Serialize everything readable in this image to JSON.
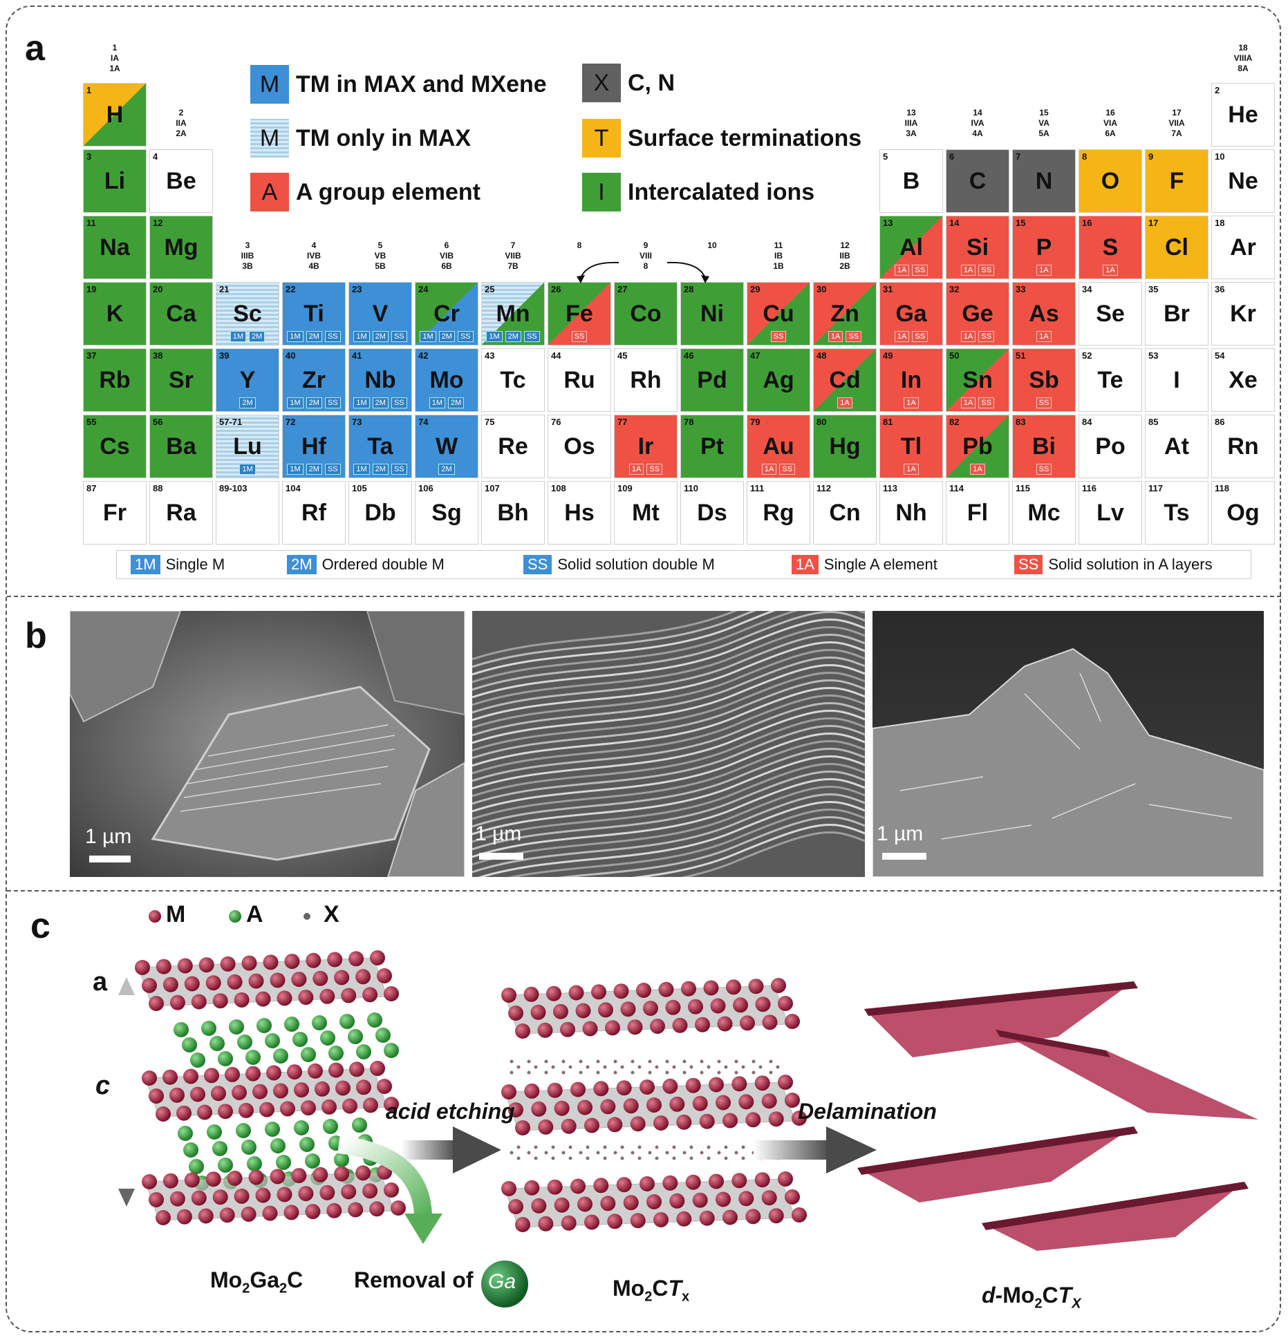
{
  "panels": {
    "a": "a",
    "b": "b",
    "c": "c"
  },
  "legend": [
    {
      "box": "M",
      "label": "TM in MAX and MXene",
      "color": "#3d8fd6"
    },
    {
      "box": "M",
      "label": "TM only in MAX",
      "color": "#a9cfe8"
    },
    {
      "box": "A",
      "label": "A group element",
      "color": "#ef5245"
    },
    {
      "box": "X",
      "label": "C, N",
      "color": "#616161"
    },
    {
      "box": "T",
      "label": "Surface terminations",
      "color": "#f5b516"
    },
    {
      "box": "I",
      "label": "Intercalated ions",
      "color": "#3f9f36"
    }
  ],
  "groups": [
    {
      "col": 1,
      "row": 0,
      "lines": [
        "1",
        "IA",
        "1A"
      ]
    },
    {
      "col": 2,
      "row": 1,
      "lines": [
        "2",
        "IIA",
        "2A"
      ]
    },
    {
      "col": 3,
      "row": 3,
      "lines": [
        "3",
        "IIIB",
        "3B"
      ]
    },
    {
      "col": 4,
      "row": 3,
      "lines": [
        "4",
        "IVB",
        "4B"
      ]
    },
    {
      "col": 5,
      "row": 3,
      "lines": [
        "5",
        "VB",
        "5B"
      ]
    },
    {
      "col": 6,
      "row": 3,
      "lines": [
        "6",
        "VIB",
        "6B"
      ]
    },
    {
      "col": 7,
      "row": 3,
      "lines": [
        "7",
        "VIIB",
        "7B"
      ]
    },
    {
      "col": 8,
      "row": 3,
      "lines": [
        "8",
        "",
        ""
      ]
    },
    {
      "col": 9,
      "row": 3,
      "lines": [
        "9",
        "VIII",
        "8"
      ]
    },
    {
      "col": 10,
      "row": 3,
      "lines": [
        "10",
        "",
        ""
      ]
    },
    {
      "col": 11,
      "row": 3,
      "lines": [
        "11",
        "IB",
        "1B"
      ]
    },
    {
      "col": 12,
      "row": 3,
      "lines": [
        "12",
        "IIB",
        "2B"
      ]
    },
    {
      "col": 13,
      "row": 1,
      "lines": [
        "13",
        "IIIA",
        "3A"
      ]
    },
    {
      "col": 14,
      "row": 1,
      "lines": [
        "14",
        "IVA",
        "4A"
      ]
    },
    {
      "col": 15,
      "row": 1,
      "lines": [
        "15",
        "VA",
        "5A"
      ]
    },
    {
      "col": 16,
      "row": 1,
      "lines": [
        "16",
        "VIA",
        "6A"
      ]
    },
    {
      "col": 17,
      "row": 1,
      "lines": [
        "17",
        "VIIA",
        "7A"
      ]
    },
    {
      "col": 18,
      "row": 0,
      "lines": [
        "18",
        "VIIIA",
        "8A"
      ]
    }
  ],
  "elements": [
    {
      "n": "1",
      "s": "H",
      "c": 1,
      "r": 1,
      "f": "g",
      "f2": "y"
    },
    {
      "n": "2",
      "s": "He",
      "c": 18,
      "r": 1,
      "f": "w"
    },
    {
      "n": "3",
      "s": "Li",
      "c": 1,
      "r": 2,
      "f": "g"
    },
    {
      "n": "4",
      "s": "Be",
      "c": 2,
      "r": 2,
      "f": "w"
    },
    {
      "n": "5",
      "s": "B",
      "c": 13,
      "r": 2,
      "f": "w"
    },
    {
      "n": "6",
      "s": "C",
      "c": 14,
      "r": 2,
      "f": "k"
    },
    {
      "n": "7",
      "s": "N",
      "c": 15,
      "r": 2,
      "f": "k"
    },
    {
      "n": "8",
      "s": "O",
      "c": 16,
      "r": 2,
      "f": "y"
    },
    {
      "n": "9",
      "s": "F",
      "c": 17,
      "r": 2,
      "f": "y"
    },
    {
      "n": "10",
      "s": "Ne",
      "c": 18,
      "r": 2,
      "f": "w"
    },
    {
      "n": "11",
      "s": "Na",
      "c": 1,
      "r": 3,
      "f": "g"
    },
    {
      "n": "12",
      "s": "Mg",
      "c": 2,
      "r": 3,
      "f": "g"
    },
    {
      "n": "13",
      "s": "Al",
      "c": 13,
      "r": 3,
      "f": "r",
      "f2": "g",
      "t": [
        "1A",
        "SS"
      ],
      "tc": "r"
    },
    {
      "n": "14",
      "s": "Si",
      "c": 14,
      "r": 3,
      "f": "r",
      "t": [
        "1A",
        "SS"
      ],
      "tc": "r"
    },
    {
      "n": "15",
      "s": "P",
      "c": 15,
      "r": 3,
      "f": "r",
      "t": [
        "1A"
      ],
      "tc": "r"
    },
    {
      "n": "16",
      "s": "S",
      "c": 16,
      "r": 3,
      "f": "r",
      "t": [
        "1A"
      ],
      "tc": "r"
    },
    {
      "n": "17",
      "s": "Cl",
      "c": 17,
      "r": 3,
      "f": "y"
    },
    {
      "n": "18",
      "s": "Ar",
      "c": 18,
      "r": 3,
      "f": "w"
    },
    {
      "n": "19",
      "s": "K",
      "c": 1,
      "r": 4,
      "f": "g"
    },
    {
      "n": "20",
      "s": "Ca",
      "c": 2,
      "r": 4,
      "f": "g"
    },
    {
      "n": "21",
      "s": "Sc",
      "c": 3,
      "r": 4,
      "f": "lb",
      "t": [
        "1M",
        "2M"
      ],
      "tc": "b"
    },
    {
      "n": "22",
      "s": "Ti",
      "c": 4,
      "r": 4,
      "f": "b",
      "t": [
        "1M",
        "2M",
        "SS"
      ],
      "tc": "b"
    },
    {
      "n": "23",
      "s": "V",
      "c": 5,
      "r": 4,
      "f": "b",
      "t": [
        "1M",
        "2M",
        "SS"
      ],
      "tc": "b"
    },
    {
      "n": "24",
      "s": "Cr",
      "c": 6,
      "r": 4,
      "f": "b",
      "f2": "g",
      "t": [
        "1M",
        "2M",
        "SS"
      ],
      "tc": "b"
    },
    {
      "n": "25",
      "s": "Mn",
      "c": 7,
      "r": 4,
      "f": "lb",
      "f2": "g",
      "t": [
        "1M",
        "2M",
        "SS"
      ],
      "tc": "b"
    },
    {
      "n": "26",
      "s": "Fe",
      "c": 8,
      "r": 4,
      "f": "r",
      "f2": "g",
      "t": [
        "SS"
      ],
      "tc": "r"
    },
    {
      "n": "27",
      "s": "Co",
      "c": 9,
      "r": 4,
      "f": "g"
    },
    {
      "n": "28",
      "s": "Ni",
      "c": 10,
      "r": 4,
      "f": "g"
    },
    {
      "n": "29",
      "s": "Cu",
      "c": 11,
      "r": 4,
      "f": "g",
      "f2": "r",
      "t": [
        "SS"
      ],
      "tc": "r"
    },
    {
      "n": "30",
      "s": "Zn",
      "c": 12,
      "r": 4,
      "f": "g",
      "f2": "r",
      "t": [
        "1A",
        "SS"
      ],
      "tc": "r"
    },
    {
      "n": "31",
      "s": "Ga",
      "c": 13,
      "r": 4,
      "f": "r",
      "t": [
        "1A",
        "SS"
      ],
      "tc": "r"
    },
    {
      "n": "32",
      "s": "Ge",
      "c": 14,
      "r": 4,
      "f": "r",
      "t": [
        "1A",
        "SS"
      ],
      "tc": "r"
    },
    {
      "n": "33",
      "s": "As",
      "c": 15,
      "r": 4,
      "f": "r",
      "t": [
        "1A"
      ],
      "tc": "r"
    },
    {
      "n": "34",
      "s": "Se",
      "c": 16,
      "r": 4,
      "f": "w"
    },
    {
      "n": "35",
      "s": "Br",
      "c": 17,
      "r": 4,
      "f": "w"
    },
    {
      "n": "36",
      "s": "Kr",
      "c": 18,
      "r": 4,
      "f": "w"
    },
    {
      "n": "37",
      "s": "Rb",
      "c": 1,
      "r": 5,
      "f": "g"
    },
    {
      "n": "38",
      "s": "Sr",
      "c": 2,
      "r": 5,
      "f": "g"
    },
    {
      "n": "39",
      "s": "Y",
      "c": 3,
      "r": 5,
      "f": "b",
      "t": [
        "2M"
      ],
      "tc": "b"
    },
    {
      "n": "40",
      "s": "Zr",
      "c": 4,
      "r": 5,
      "f": "b",
      "t": [
        "1M",
        "2M",
        "SS"
      ],
      "tc": "b"
    },
    {
      "n": "41",
      "s": "Nb",
      "c": 5,
      "r": 5,
      "f": "b",
      "t": [
        "1M",
        "2M",
        "SS"
      ],
      "tc": "b"
    },
    {
      "n": "42",
      "s": "Mo",
      "c": 6,
      "r": 5,
      "f": "b",
      "t": [
        "1M",
        "2M"
      ],
      "tc": "b"
    },
    {
      "n": "43",
      "s": "Tc",
      "c": 7,
      "r": 5,
      "f": "w"
    },
    {
      "n": "44",
      "s": "Ru",
      "c": 8,
      "r": 5,
      "f": "w"
    },
    {
      "n": "45",
      "s": "Rh",
      "c": 9,
      "r": 5,
      "f": "w"
    },
    {
      "n": "46",
      "s": "Pd",
      "c": 10,
      "r": 5,
      "f": "g"
    },
    {
      "n": "47",
      "s": "Ag",
      "c": 11,
      "r": 5,
      "f": "g"
    },
    {
      "n": "48",
      "s": "Cd",
      "c": 12,
      "r": 5,
      "f": "g",
      "f2": "r",
      "t": [
        "1A"
      ],
      "tc": "r"
    },
    {
      "n": "49",
      "s": "In",
      "c": 13,
      "r": 5,
      "f": "r",
      "t": [
        "1A"
      ],
      "tc": "r"
    },
    {
      "n": "50",
      "s": "Sn",
      "c": 14,
      "r": 5,
      "f": "r",
      "f2": "g",
      "t": [
        "1A",
        "SS"
      ],
      "tc": "r"
    },
    {
      "n": "51",
      "s": "Sb",
      "c": 15,
      "r": 5,
      "f": "r",
      "t": [
        "SS"
      ],
      "tc": "r"
    },
    {
      "n": "52",
      "s": "Te",
      "c": 16,
      "r": 5,
      "f": "w"
    },
    {
      "n": "53",
      "s": "I",
      "c": 17,
      "r": 5,
      "f": "w"
    },
    {
      "n": "54",
      "s": "Xe",
      "c": 18,
      "r": 5,
      "f": "w"
    },
    {
      "n": "55",
      "s": "Cs",
      "c": 1,
      "r": 6,
      "f": "g"
    },
    {
      "n": "56",
      "s": "Ba",
      "c": 2,
      "r": 6,
      "f": "g"
    },
    {
      "n": "57-71",
      "s": "Lu",
      "c": 3,
      "r": 6,
      "f": "lb",
      "t": [
        "1M"
      ],
      "tc": "b"
    },
    {
      "n": "72",
      "s": "Hf",
      "c": 4,
      "r": 6,
      "f": "b",
      "t": [
        "1M",
        "2M",
        "SS"
      ],
      "tc": "b"
    },
    {
      "n": "73",
      "s": "Ta",
      "c": 5,
      "r": 6,
      "f": "b",
      "t": [
        "1M",
        "2M",
        "SS"
      ],
      "tc": "b"
    },
    {
      "n": "74",
      "s": "W",
      "c": 6,
      "r": 6,
      "f": "b",
      "t": [
        "2M"
      ],
      "tc": "b"
    },
    {
      "n": "75",
      "s": "Re",
      "c": 7,
      "r": 6,
      "f": "w"
    },
    {
      "n": "76",
      "s": "Os",
      "c": 8,
      "r": 6,
      "f": "w"
    },
    {
      "n": "77",
      "s": "Ir",
      "c": 9,
      "r": 6,
      "f": "r",
      "t": [
        "1A",
        "SS"
      ],
      "tc": "r"
    },
    {
      "n": "78",
      "s": "Pt",
      "c": 10,
      "r": 6,
      "f": "g"
    },
    {
      "n": "79",
      "s": "Au",
      "c": 11,
      "r": 6,
      "f": "r",
      "t": [
        "1A",
        "SS"
      ],
      "tc": "r"
    },
    {
      "n": "80",
      "s": "Hg",
      "c": 12,
      "r": 6,
      "f": "g"
    },
    {
      "n": "81",
      "s": "Tl",
      "c": 13,
      "r": 6,
      "f": "r",
      "t": [
        "1A"
      ],
      "tc": "r"
    },
    {
      "n": "82",
      "s": "Pb",
      "c": 14,
      "r": 6,
      "f": "g",
      "f2": "r",
      "t": [
        "1A"
      ],
      "tc": "r"
    },
    {
      "n": "83",
      "s": "Bi",
      "c": 15,
      "r": 6,
      "f": "r",
      "t": [
        "SS"
      ],
      "tc": "r"
    },
    {
      "n": "84",
      "s": "Po",
      "c": 16,
      "r": 6,
      "f": "w"
    },
    {
      "n": "85",
      "s": "At",
      "c": 17,
      "r": 6,
      "f": "w"
    },
    {
      "n": "86",
      "s": "Rn",
      "c": 18,
      "r": 6,
      "f": "w"
    },
    {
      "n": "87",
      "s": "Fr",
      "c": 1,
      "r": 7,
      "f": "w"
    },
    {
      "n": "88",
      "s": "Ra",
      "c": 2,
      "r": 7,
      "f": "w"
    },
    {
      "n": "89-103",
      "s": "",
      "c": 3,
      "r": 7,
      "f": "w"
    },
    {
      "n": "104",
      "s": "Rf",
      "c": 4,
      "r": 7,
      "f": "w"
    },
    {
      "n": "105",
      "s": "Db",
      "c": 5,
      "r": 7,
      "f": "w"
    },
    {
      "n": "106",
      "s": "Sg",
      "c": 6,
      "r": 7,
      "f": "w"
    },
    {
      "n": "107",
      "s": "Bh",
      "c": 7,
      "r": 7,
      "f": "w"
    },
    {
      "n": "108",
      "s": "Hs",
      "c": 8,
      "r": 7,
      "f": "w"
    },
    {
      "n": "109",
      "s": "Mt",
      "c": 9,
      "r": 7,
      "f": "w"
    },
    {
      "n": "110",
      "s": "Ds",
      "c": 10,
      "r": 7,
      "f": "w"
    },
    {
      "n": "111",
      "s": "Rg",
      "c": 11,
      "r": 7,
      "f": "w"
    },
    {
      "n": "112",
      "s": "Cn",
      "c": 12,
      "r": 7,
      "f": "w"
    },
    {
      "n": "113",
      "s": "Nh",
      "c": 13,
      "r": 7,
      "f": "w"
    },
    {
      "n": "114",
      "s": "Fl",
      "c": 14,
      "r": 7,
      "f": "w"
    },
    {
      "n": "115",
      "s": "Mc",
      "c": 15,
      "r": 7,
      "f": "w"
    },
    {
      "n": "116",
      "s": "Lv",
      "c": 16,
      "r": 7,
      "f": "w"
    },
    {
      "n": "117",
      "s": "Ts",
      "c": 17,
      "r": 7,
      "f": "w"
    },
    {
      "n": "118",
      "s": "Og",
      "c": 18,
      "r": 7,
      "f": "w"
    }
  ],
  "colors": {
    "g": "#3f9f36",
    "y": "#f5b516",
    "r": "#ef5245",
    "b": "#3d8fd6",
    "lb": "#a9cfe8",
    "k": "#616161",
    "w": "#ffffff"
  },
  "sub_legend": [
    {
      "box": "1M",
      "label": "Single M",
      "color": "#3d8fd6"
    },
    {
      "box": "2M",
      "label": "Ordered double M",
      "color": "#3d8fd6"
    },
    {
      "box": "SS",
      "label": "Solid solution double M",
      "color": "#3d8fd6"
    },
    {
      "box": "1A",
      "label": "Single A element",
      "color": "#ef5245"
    },
    {
      "box": "SS",
      "label": "Solid solution in A layers",
      "color": "#ef5245"
    }
  ],
  "sem_images": [
    {
      "scale": "1 µm"
    },
    {
      "scale": "1 µm"
    },
    {
      "scale": "1 µm"
    }
  ],
  "panel_c": {
    "atom_legend": [
      "M",
      "A",
      "X"
    ],
    "axis_a": "a",
    "axis_c": "c",
    "step1": "acid etching",
    "step2": "Delamination",
    "removal_prefix": "Removal of ",
    "removal_element": "Ga",
    "compound1": {
      "base": "Mo",
      "sub1": "2",
      "mid": "Ga",
      "sub2": "2",
      "end": "C"
    },
    "compound2": {
      "base": "Mo",
      "sub1": "2",
      "mid": "C",
      "italic": "T",
      "sub2": "x"
    },
    "compound3": {
      "prefix": "d-",
      "base": "Mo",
      "sub1": "2",
      "mid": "C",
      "italic": "T",
      "sub2": "X"
    },
    "colors": {
      "M": "#9e1f3c",
      "A": "#2f9a3a",
      "X": "#666666"
    }
  }
}
